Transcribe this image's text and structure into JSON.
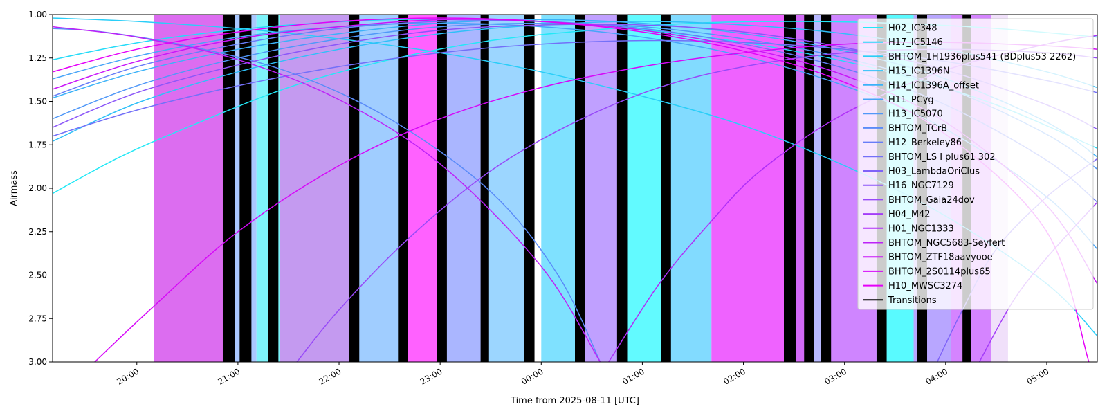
{
  "chart_data": {
    "type": "line",
    "title": "",
    "xlabel": "Time from 2025-08-11 [UTC]",
    "ylabel": "Airmass",
    "ylim": [
      3.0,
      1.0
    ],
    "y_inverted": true,
    "xlim": [
      "19:10",
      "05:30"
    ],
    "xticks": [
      "20:00",
      "21:00",
      "22:00",
      "23:00",
      "00:00",
      "01:00",
      "02:00",
      "03:00",
      "04:00",
      "05:00"
    ],
    "yticks": [
      "1.00",
      "1.25",
      "1.50",
      "1.75",
      "2.00",
      "2.25",
      "2.50",
      "2.75",
      "3.00"
    ],
    "legend_position": "upper-right",
    "grid": false,
    "legend": [
      {
        "name": "H02_IC348",
        "color": "#23e8f6"
      },
      {
        "name": "H17_IC5146",
        "color": "#24dbf8"
      },
      {
        "name": "BHTOM_1H1936plus541 (BDplus53 2262)",
        "color": "#29cef8"
      },
      {
        "name": "H15_IC1396N",
        "color": "#2ec0f8"
      },
      {
        "name": "H14_IC1396A_offset",
        "color": "#3bb2f8"
      },
      {
        "name": "H11_PCyg",
        "color": "#47a5f8"
      },
      {
        "name": "H13_IC5070",
        "color": "#5098f8"
      },
      {
        "name": "BHTOM_TCrB",
        "color": "#5a8bf8"
      },
      {
        "name": "H12_Berkeley86",
        "color": "#677df8"
      },
      {
        "name": "BHTOM_LS I plus61 302",
        "color": "#7370f8"
      },
      {
        "name": "H03_LambdaOriClus",
        "color": "#7f63f8"
      },
      {
        "name": "H16_NGC7129",
        "color": "#8b56f8"
      },
      {
        "name": "BHTOM_Gaia24dov",
        "color": "#9749f8"
      },
      {
        "name": "H04_M42",
        "color": "#a33cf8"
      },
      {
        "name": "H01_NGC1333",
        "color": "#b02ff8"
      },
      {
        "name": "BHTOM_NGC5683-Seyfert",
        "color": "#bd22f8"
      },
      {
        "name": "BHTOM_ZTF18aavyooe",
        "color": "#c915f8"
      },
      {
        "name": "BHTOM_2S0114plus65",
        "color": "#d608f8"
      },
      {
        "name": "H10_MWSC3274",
        "color": "#e500f8"
      },
      {
        "name": "Transitions",
        "color": "#000000"
      }
    ],
    "blocks": [
      {
        "start": "20:10",
        "end": "20:52",
        "color": "#dc6df0"
      },
      {
        "start": "20:52",
        "end": "21:11",
        "color": "#aac8ff"
      },
      {
        "start": "21:11",
        "end": "21:25",
        "color": "#7ef3fa"
      },
      {
        "start": "21:25",
        "end": "22:11",
        "color": "#c49af0"
      },
      {
        "start": "22:11",
        "end": "22:37",
        "color": "#a0cdff"
      },
      {
        "start": "22:37",
        "end": "22:59",
        "color": "#ff61ff"
      },
      {
        "start": "22:59",
        "end": "23:28",
        "color": "#aab6ff"
      },
      {
        "start": "23:28",
        "end": "23:55",
        "color": "#9cd6ff"
      },
      {
        "start": "00:00",
        "end": "00:22",
        "color": "#7fe1ff"
      },
      {
        "start": "00:22",
        "end": "00:48",
        "color": "#c0a0ff"
      },
      {
        "start": "00:48",
        "end": "01:11",
        "color": "#62faff"
      },
      {
        "start": "01:11",
        "end": "01:41",
        "color": "#82dbff"
      },
      {
        "start": "01:41",
        "end": "02:26",
        "color": "#ef62ff"
      },
      {
        "start": "02:26",
        "end": "02:38",
        "color": "#d36af8"
      },
      {
        "start": "02:38",
        "end": "02:49",
        "color": "#b8b9ff"
      },
      {
        "start": "02:49",
        "end": "03:19",
        "color": "#cf85ff"
      },
      {
        "start": "03:19",
        "end": "03:41",
        "color": "#59faff"
      },
      {
        "start": "03:41",
        "end": "04:03",
        "color": "#b8a6ff"
      },
      {
        "start": "04:03",
        "end": "04:27",
        "color": "#d584ff"
      },
      {
        "start": "04:27",
        "end": "04:37",
        "color": "#f0e0fa"
      }
    ],
    "transitions": [
      {
        "start": "20:51",
        "end": "20:58"
      },
      {
        "start": "21:01",
        "end": "21:08"
      },
      {
        "start": "21:18",
        "end": "21:24"
      },
      {
        "start": "22:06",
        "end": "22:12"
      },
      {
        "start": "22:35",
        "end": "22:41"
      },
      {
        "start": "22:58",
        "end": "23:04"
      },
      {
        "start": "23:24",
        "end": "23:29"
      },
      {
        "start": "23:50",
        "end": "23:56"
      },
      {
        "start": "00:20",
        "end": "00:26"
      },
      {
        "start": "00:45",
        "end": "00:51"
      },
      {
        "start": "01:11",
        "end": "01:17"
      },
      {
        "start": "02:24",
        "end": "02:31"
      },
      {
        "start": "02:36",
        "end": "02:42"
      },
      {
        "start": "02:46",
        "end": "02:52"
      },
      {
        "start": "03:19",
        "end": "03:25"
      },
      {
        "start": "03:43",
        "end": "03:49"
      },
      {
        "start": "04:10",
        "end": "04:15"
      }
    ],
    "series": [
      {
        "name": "H02_IC348",
        "points": [
          [
            "19:10",
            2.03
          ],
          [
            "19:50",
            1.82
          ],
          [
            "20:30",
            1.65
          ],
          [
            "21:30",
            1.42
          ],
          [
            "22:30",
            1.26
          ],
          [
            "23:30",
            1.15
          ],
          [
            "00:30",
            1.09
          ],
          [
            "01:30",
            1.05
          ],
          [
            "02:30",
            1.04
          ],
          [
            "03:30",
            1.05
          ],
          [
            "04:30",
            1.08
          ],
          [
            "05:30",
            1.13
          ]
        ]
      },
      {
        "name": "H17_IC5146",
        "points": [
          [
            "19:10",
            1.26
          ],
          [
            "19:50",
            1.18
          ],
          [
            "20:30",
            1.12
          ],
          [
            "21:30",
            1.06
          ],
          [
            "22:30",
            1.03
          ],
          [
            "23:30",
            1.03
          ],
          [
            "00:30",
            1.06
          ],
          [
            "01:30",
            1.12
          ],
          [
            "02:30",
            1.21
          ],
          [
            "03:30",
            1.34
          ],
          [
            "04:30",
            1.52
          ],
          [
            "05:30",
            1.77
          ]
        ]
      },
      {
        "name": "BHTOM_1H1936plus541 (BDplus53 2262)",
        "points": [
          [
            "19:10",
            1.02
          ],
          [
            "20:00",
            1.04
          ],
          [
            "21:00",
            1.08
          ],
          [
            "22:00",
            1.14
          ],
          [
            "23:00",
            1.22
          ],
          [
            "00:00",
            1.33
          ],
          [
            "01:00",
            1.47
          ],
          [
            "02:00",
            1.64
          ],
          [
            "03:00",
            1.87
          ],
          [
            "04:00",
            2.16
          ],
          [
            "05:00",
            2.55
          ],
          [
            "05:30",
            2.85
          ]
        ]
      },
      {
        "name": "H15_IC1396N",
        "points": [
          [
            "19:10",
            1.73
          ],
          [
            "20:00",
            1.51
          ],
          [
            "21:00",
            1.33
          ],
          [
            "22:00",
            1.2
          ],
          [
            "23:00",
            1.11
          ],
          [
            "00:00",
            1.06
          ],
          [
            "01:00",
            1.04
          ],
          [
            "02:00",
            1.06
          ],
          [
            "03:00",
            1.11
          ],
          [
            "04:00",
            1.2
          ],
          [
            "05:00",
            1.33
          ],
          [
            "05:30",
            1.42
          ]
        ]
      },
      {
        "name": "H14_IC1396A_offset",
        "points": [
          [
            "19:10",
            1.48
          ],
          [
            "20:00",
            1.33
          ],
          [
            "21:00",
            1.2
          ],
          [
            "22:00",
            1.11
          ],
          [
            "23:00",
            1.05
          ],
          [
            "00:00",
            1.03
          ],
          [
            "01:00",
            1.05
          ],
          [
            "02:00",
            1.11
          ],
          [
            "03:00",
            1.21
          ],
          [
            "04:00",
            1.37
          ],
          [
            "05:00",
            1.62
          ],
          [
            "05:30",
            1.82
          ]
        ]
      },
      {
        "name": "H11_PCyg",
        "points": [
          [
            "19:10",
            1.37
          ],
          [
            "20:00",
            1.24
          ],
          [
            "21:00",
            1.13
          ],
          [
            "22:00",
            1.07
          ],
          [
            "23:00",
            1.05
          ],
          [
            "00:00",
            1.07
          ],
          [
            "01:00",
            1.13
          ],
          [
            "02:00",
            1.24
          ],
          [
            "03:00",
            1.41
          ],
          [
            "04:00",
            1.66
          ],
          [
            "05:00",
            2.05
          ],
          [
            "05:30",
            2.35
          ]
        ]
      },
      {
        "name": "H13_IC5070",
        "points": [
          [
            "19:10",
            1.6
          ],
          [
            "20:00",
            1.41
          ],
          [
            "21:00",
            1.25
          ],
          [
            "22:00",
            1.14
          ],
          [
            "23:00",
            1.07
          ],
          [
            "00:00",
            1.05
          ],
          [
            "01:00",
            1.07
          ],
          [
            "02:00",
            1.14
          ],
          [
            "03:00",
            1.25
          ],
          [
            "04:00",
            1.42
          ],
          [
            "05:00",
            1.69
          ],
          [
            "05:30",
            1.89
          ]
        ]
      },
      {
        "name": "BHTOM_TCrB",
        "points": [
          [
            "19:10",
            1.08
          ],
          [
            "19:40",
            1.1
          ],
          [
            "20:30",
            1.18
          ],
          [
            "21:30",
            1.33
          ],
          [
            "22:30",
            1.6
          ],
          [
            "23:30",
            2.02
          ],
          [
            "00:10",
            2.5
          ],
          [
            "00:35",
            3.0
          ]
        ]
      },
      {
        "name": "H12_Berkeley86",
        "points": [
          [
            "19:10",
            1.47
          ],
          [
            "20:00",
            1.3
          ],
          [
            "21:00",
            1.17
          ],
          [
            "22:00",
            1.08
          ],
          [
            "23:00",
            1.04
          ],
          [
            "00:00",
            1.04
          ],
          [
            "01:00",
            1.08
          ],
          [
            "02:00",
            1.17
          ],
          [
            "03:00",
            1.31
          ],
          [
            "04:00",
            1.52
          ],
          [
            "05:00",
            1.84
          ],
          [
            "05:30",
            2.08
          ]
        ]
      },
      {
        "name": "BHTOM_LS I plus61 302",
        "points": [
          [
            "19:10",
            1.7
          ],
          [
            "20:00",
            1.55
          ],
          [
            "21:00",
            1.41
          ],
          [
            "22:00",
            1.3
          ],
          [
            "23:00",
            1.22
          ],
          [
            "00:00",
            1.17
          ],
          [
            "01:00",
            1.15
          ],
          [
            "02:00",
            1.16
          ],
          [
            "03:00",
            1.2
          ],
          [
            "04:00",
            1.27
          ],
          [
            "05:00",
            1.38
          ],
          [
            "05:30",
            1.45
          ]
        ]
      },
      {
        "name": "H03_LambdaOriClus",
        "points": [
          [
            "03:55",
            3.0
          ],
          [
            "04:10",
            2.7
          ],
          [
            "04:30",
            2.35
          ],
          [
            "05:00",
            2.05
          ],
          [
            "05:30",
            1.83
          ]
        ]
      },
      {
        "name": "H16_NGC7129",
        "points": [
          [
            "19:10",
            1.65
          ],
          [
            "20:00",
            1.45
          ],
          [
            "21:00",
            1.29
          ],
          [
            "22:00",
            1.17
          ],
          [
            "23:00",
            1.09
          ],
          [
            "00:00",
            1.06
          ],
          [
            "01:00",
            1.06
          ],
          [
            "02:00",
            1.1
          ],
          [
            "03:00",
            1.19
          ],
          [
            "04:00",
            1.32
          ],
          [
            "05:00",
            1.52
          ],
          [
            "05:30",
            1.66
          ]
        ]
      },
      {
        "name": "BHTOM_Gaia24dov",
        "points": [
          [
            "21:35",
            3.0
          ],
          [
            "22:00",
            2.7
          ],
          [
            "22:40",
            2.3
          ],
          [
            "23:30",
            1.9
          ],
          [
            "00:20",
            1.62
          ],
          [
            "01:10",
            1.42
          ],
          [
            "02:00",
            1.3
          ],
          [
            "03:00",
            1.22
          ],
          [
            "04:00",
            1.2
          ],
          [
            "05:00",
            1.22
          ],
          [
            "05:30",
            1.25
          ]
        ]
      },
      {
        "name": "H04_M42",
        "points": [
          [
            "04:20",
            3.0
          ],
          [
            "04:40",
            2.65
          ],
          [
            "05:00",
            2.4
          ],
          [
            "05:30",
            2.08
          ]
        ]
      },
      {
        "name": "H01_NGC1333",
        "points": [
          [
            "00:40",
            3.0
          ],
          [
            "01:10",
            2.55
          ],
          [
            "01:40",
            2.2
          ],
          [
            "02:10",
            1.9
          ],
          [
            "03:00",
            1.57
          ],
          [
            "04:00",
            1.32
          ],
          [
            "05:00",
            1.17
          ],
          [
            "05:30",
            1.12
          ]
        ]
      },
      {
        "name": "BHTOM_NGC5683-Seyfert",
        "points": [
          [
            "19:10",
            1.07
          ],
          [
            "20:00",
            1.13
          ],
          [
            "21:00",
            1.26
          ],
          [
            "22:00",
            1.49
          ],
          [
            "23:00",
            1.86
          ],
          [
            "00:00",
            2.45
          ],
          [
            "00:35",
            3.0
          ]
        ]
      },
      {
        "name": "BHTOM_ZTF18aavyooe",
        "points": [
          [
            "19:10",
            1.43
          ],
          [
            "20:00",
            1.27
          ],
          [
            "21:00",
            1.14
          ],
          [
            "22:00",
            1.07
          ],
          [
            "23:00",
            1.03
          ],
          [
            "00:00",
            1.04
          ],
          [
            "01:00",
            1.09
          ],
          [
            "02:00",
            1.19
          ],
          [
            "03:00",
            1.35
          ],
          [
            "04:00",
            1.62
          ],
          [
            "05:00",
            2.1
          ],
          [
            "05:30",
            2.55
          ]
        ]
      },
      {
        "name": "BHTOM_2S0114plus65",
        "points": [
          [
            "19:35",
            3.0
          ],
          [
            "20:10",
            2.68
          ],
          [
            "21:00",
            2.25
          ],
          [
            "22:00",
            1.87
          ],
          [
            "23:00",
            1.6
          ],
          [
            "00:00",
            1.42
          ],
          [
            "01:00",
            1.3
          ],
          [
            "02:00",
            1.22
          ],
          [
            "03:00",
            1.17
          ],
          [
            "04:00",
            1.16
          ],
          [
            "05:00",
            1.18
          ],
          [
            "05:30",
            1.2
          ]
        ]
      },
      {
        "name": "H10_MWSC3274",
        "points": [
          [
            "19:10",
            1.33
          ],
          [
            "20:00",
            1.2
          ],
          [
            "21:00",
            1.1
          ],
          [
            "22:00",
            1.04
          ],
          [
            "23:00",
            1.02
          ],
          [
            "00:00",
            1.04
          ],
          [
            "01:00",
            1.1
          ],
          [
            "02:00",
            1.21
          ],
          [
            "03:00",
            1.39
          ],
          [
            "04:00",
            1.69
          ],
          [
            "05:00",
            2.25
          ],
          [
            "05:25",
            3.0
          ]
        ]
      }
    ]
  }
}
